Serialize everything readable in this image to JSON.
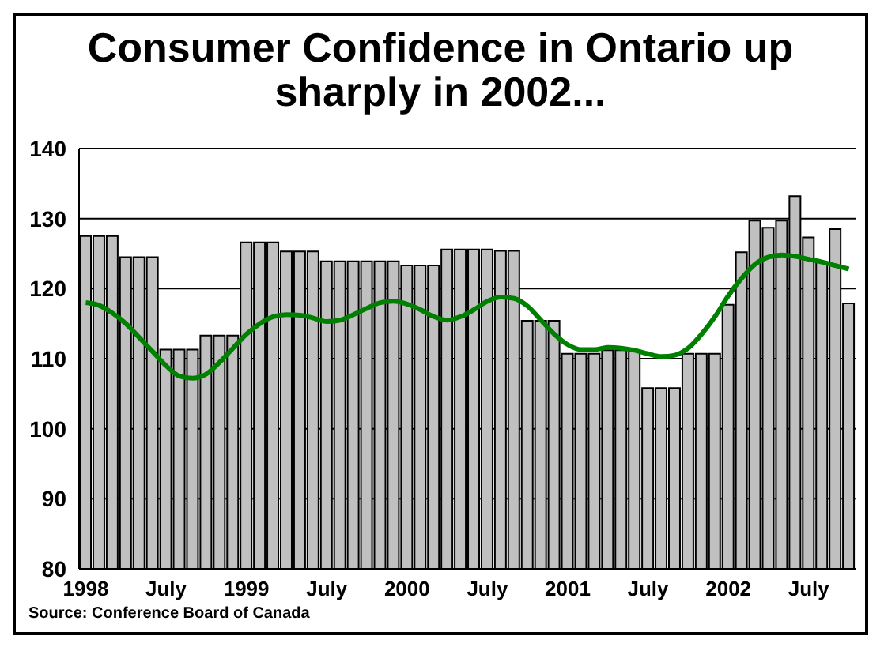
{
  "chart_data": {
    "type": "bar",
    "title": "Consumer Confidence in Ontario up sharply in 2002...",
    "categories": [
      "1998",
      null,
      null,
      null,
      null,
      null,
      "July",
      null,
      null,
      null,
      null,
      null,
      "1999",
      null,
      null,
      null,
      null,
      null,
      "July",
      null,
      null,
      null,
      null,
      null,
      "2000",
      null,
      null,
      null,
      null,
      null,
      "July",
      null,
      null,
      null,
      null,
      null,
      "2001",
      null,
      null,
      null,
      null,
      null,
      "July",
      null,
      null,
      null,
      null,
      null,
      "2002",
      null,
      null,
      null,
      null,
      null,
      "July",
      null,
      null,
      null
    ],
    "series": [
      {
        "color": "#c0c0c0",
        "values": [
          127.5,
          127.5,
          127.5,
          124.5,
          124.5,
          124.5,
          111.3,
          111.3,
          111.3,
          113.3,
          113.3,
          113.3,
          126.6,
          126.6,
          126.6,
          125.3,
          125.3,
          125.3,
          123.9,
          123.9,
          123.9,
          123.9,
          123.9,
          123.9,
          123.3,
          123.3,
          123.3,
          125.6,
          125.6,
          125.6,
          125.6,
          125.4,
          125.4,
          115.4,
          115.4,
          115.4,
          110.7,
          110.7,
          110.7,
          111.2,
          111.2,
          111.2,
          105.8,
          105.8,
          105.8,
          110.7,
          110.7,
          110.7,
          117.7,
          125.2,
          129.7,
          128.7,
          129.7,
          133.2,
          127.3,
          123.8,
          128.5,
          117.9
        ]
      },
      {
        "type": "line",
        "color": "#008000",
        "values": [
          118,
          117.6,
          116.5,
          115,
          113,
          111,
          109,
          107.5,
          107.2,
          107.8,
          109.5,
          111.5,
          113.5,
          115,
          116,
          116.3,
          116.2,
          115.8,
          115.3,
          115.5,
          116.3,
          117.2,
          118,
          118.2,
          117.8,
          117,
          116,
          115.5,
          116,
          117,
          118.2,
          118.8,
          118.6,
          117.5,
          115.5,
          113.5,
          112,
          111.3,
          111.3,
          111.6,
          111.5,
          111.2,
          110.7,
          110.3,
          110.5,
          111.5,
          113.5,
          116,
          119,
          121.5,
          123.5,
          124.5,
          124.8,
          124.6,
          124.2,
          123.8,
          123.3,
          122.8
        ]
      }
    ],
    "ylim": [
      80,
      140
    ],
    "yticks": [
      80,
      90,
      100,
      110,
      120,
      130,
      140
    ],
    "grid": "y",
    "marker": "none",
    "line_style": "solid",
    "legend": false,
    "annotations": [
      "Source: Conference Board of Canada"
    ]
  }
}
